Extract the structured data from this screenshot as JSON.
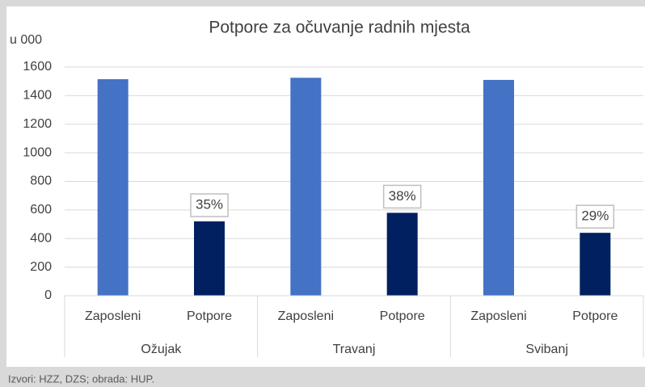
{
  "chart_data": {
    "type": "bar",
    "title": "Potpore za očuvanje radnih mjesta",
    "y_unit": "u 000",
    "categories": [
      "Zaposleni",
      "Potpore",
      "Zaposleni",
      "Potpore",
      "Zaposleni",
      "Potpore"
    ],
    "groups": [
      "Ožujak",
      "Travanj",
      "Svibanj"
    ],
    "values": [
      1515,
      520,
      1525,
      580,
      1510,
      440
    ],
    "colors": [
      "#4472c4",
      "#002060",
      "#4472c4",
      "#002060",
      "#4472c4",
      "#002060"
    ],
    "annotations": [
      null,
      "35%",
      null,
      "38%",
      null,
      "29%"
    ],
    "ylim": [
      0,
      1600
    ],
    "yticks": [
      0,
      200,
      400,
      600,
      800,
      1000,
      1200,
      1400,
      1600
    ],
    "grid": true,
    "source": "Izvori: HZZ, DZS; obrada: HUP."
  }
}
